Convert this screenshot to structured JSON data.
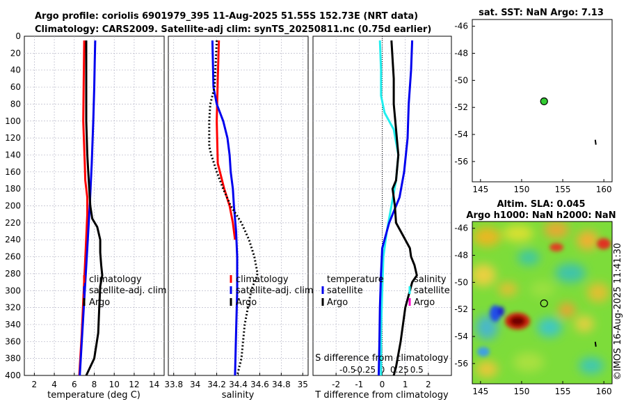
{
  "titles": {
    "line1": "Argo profile: coriolis 6901979_395 11-Aug-2025 51.55S 152.73E (NRT data)",
    "line2": "Climatology: CARS2009. Satellite-adj clim: synTS_20250811.nc (0.75d earlier)"
  },
  "credit": "©IMOS 16-Aug-2025 11:41:30",
  "colors": {
    "climatology": "#ff0000",
    "satellite": "#0000ee",
    "argo": "#000000",
    "t_satellite": "#22eeee",
    "s_argo_diff": "#ff00cc",
    "grid": "#b8b8c8",
    "sla_marker": "#000000",
    "sst_marker": "#33cc33"
  },
  "chart_data": [
    {
      "id": "temperature",
      "type": "line",
      "xlabel": "temperature (deg C)",
      "xlim": [
        1,
        15
      ],
      "xticks": [
        "2",
        "4",
        "6",
        "8",
        "10",
        "12",
        "14"
      ],
      "ylim": [
        0,
        400
      ],
      "yticks": [
        "0",
        "20",
        "40",
        "60",
        "80",
        "100",
        "120",
        "140",
        "160",
        "180",
        "200",
        "220",
        "240",
        "260",
        "280",
        "300",
        "320",
        "340",
        "360",
        "380",
        "400"
      ],
      "legend": {
        "climatology": "climatology",
        "satellite": "satellite-adj. clim",
        "argo": "Argo"
      },
      "series": [
        {
          "name": "climatology",
          "color_key": "climatology",
          "dash": false,
          "depth": [
            5,
            50,
            100,
            150,
            170,
            190,
            210,
            250,
            300,
            350,
            400
          ],
          "values": [
            7.0,
            6.95,
            6.9,
            7.05,
            7.1,
            7.3,
            7.3,
            7.15,
            6.95,
            6.75,
            6.5
          ]
        },
        {
          "name": "satellite-adj. clim",
          "color_key": "satellite",
          "dash": false,
          "depth": [
            5,
            30,
            60,
            100,
            150,
            200,
            250,
            300,
            350,
            400
          ],
          "values": [
            8.1,
            8.05,
            8.0,
            7.9,
            7.75,
            7.55,
            7.3,
            7.05,
            6.8,
            6.55
          ]
        },
        {
          "name": "Argo",
          "color_key": "argo",
          "dash": false,
          "depth": [
            5,
            100,
            140,
            170,
            200,
            215,
            225,
            240,
            255,
            270,
            282,
            295,
            320,
            350,
            380,
            400
          ],
          "values": [
            7.2,
            7.2,
            7.3,
            7.45,
            7.6,
            7.8,
            8.3,
            8.6,
            8.6,
            8.7,
            8.8,
            8.6,
            8.5,
            8.4,
            8.0,
            7.2
          ]
        }
      ]
    },
    {
      "id": "salinity",
      "type": "line",
      "xlabel": "salinity",
      "xlim": [
        33.75,
        35.05
      ],
      "xticks": [
        "33.8",
        "34",
        "34.2",
        "34.4",
        "34.6",
        "34.8",
        "35"
      ],
      "ylim": [
        0,
        400
      ],
      "legend": {
        "climatology": "climatology",
        "satellite": "satellite-adj. clim",
        "argo": "Argo"
      },
      "series": [
        {
          "name": "climatology",
          "color_key": "climatology",
          "dash": false,
          "depth": [
            5,
            50,
            100,
            150,
            160,
            180,
            200,
            220,
            240
          ],
          "values": [
            34.22,
            34.21,
            34.2,
            34.21,
            34.23,
            34.27,
            34.32,
            34.35,
            34.37
          ]
        },
        {
          "name": "satellite-adj. clim",
          "color_key": "satellite",
          "dash": false,
          "depth": [
            5,
            60,
            80,
            100,
            120,
            140,
            160,
            180,
            200,
            230,
            260,
            300,
            350,
            400
          ],
          "values": [
            34.16,
            34.17,
            34.2,
            34.26,
            34.3,
            34.32,
            34.33,
            34.35,
            34.36,
            34.38,
            34.39,
            34.39,
            34.38,
            34.37
          ]
        },
        {
          "name": "Argo",
          "color_key": "argo",
          "dash": true,
          "depth": [
            5,
            60,
            80,
            100,
            130,
            140,
            160,
            180,
            200,
            220,
            240,
            260,
            280,
            300,
            340,
            380,
            400
          ],
          "values": [
            34.2,
            34.18,
            34.14,
            34.13,
            34.13,
            34.15,
            34.2,
            34.26,
            34.33,
            34.43,
            34.5,
            34.55,
            34.58,
            34.52,
            34.46,
            34.43,
            34.39
          ]
        }
      ]
    },
    {
      "id": "difference",
      "type": "line",
      "xlabel": "T difference from climatology",
      "xlim": [
        -3,
        3
      ],
      "xticks": [
        "-2",
        "-1",
        "0",
        "1",
        "2"
      ],
      "s_label": "S difference from climatology",
      "s_xticks": [
        "-0.5",
        "-0.25",
        "0",
        "0.25",
        "0.5"
      ],
      "s_xtick_vals": [
        -1.5,
        -0.75,
        0,
        0.75,
        1.5
      ],
      "ylim": [
        0,
        400
      ],
      "legend": {
        "temperature": "temperature",
        "t_satellite": "satellite",
        "t_argo": "Argo",
        "salinity": "salinity",
        "s_satellite": "satellite",
        "s_argo": "Argo"
      },
      "series": [
        {
          "name": "T satellite",
          "color_key": "t_satellite",
          "dash": false,
          "depth": [
            5,
            40,
            70,
            90,
            110,
            140,
            170,
            200,
            230,
            260,
            300,
            350,
            400
          ],
          "values": [
            -0.1,
            -0.05,
            -0.05,
            0.1,
            0.5,
            0.7,
            0.6,
            0.4,
            0.2,
            0.05,
            0.0,
            -0.05,
            -0.05
          ]
        },
        {
          "name": "S satellite",
          "color_key": "satellite",
          "dash": false,
          "depth": [
            5,
            40,
            80,
            120,
            160,
            190,
            220,
            250,
            280,
            320,
            360,
            400
          ],
          "values": [
            1.3,
            1.25,
            1.15,
            1.1,
            0.95,
            0.75,
            0.3,
            0.0,
            -0.05,
            -0.1,
            -0.12,
            -0.15
          ]
        },
        {
          "name": "Argo",
          "color_key": "argo",
          "dash": false,
          "depth": [
            5,
            50,
            80,
            110,
            140,
            170,
            180,
            200,
            220,
            235,
            250,
            260,
            270,
            282,
            290,
            300,
            320,
            360,
            390,
            400
          ],
          "values": [
            0.4,
            0.5,
            0.5,
            0.6,
            0.7,
            0.6,
            0.45,
            0.55,
            0.6,
            0.9,
            1.2,
            1.25,
            1.4,
            1.5,
            1.3,
            1.2,
            1.0,
            0.8,
            0.6,
            0.5
          ]
        }
      ]
    },
    {
      "id": "sst_map",
      "type": "scatter",
      "title": "sat. SST: NaN Argo: 7.13",
      "xlim": [
        144,
        161
      ],
      "ylim": [
        -57.5,
        -45.5
      ],
      "xticks": [
        "145",
        "150",
        "155",
        "160"
      ],
      "yticks": [
        "-46",
        "-48",
        "-50",
        "-52",
        "-54",
        "-56"
      ],
      "points": [
        {
          "lon": 152.73,
          "lat": -51.55,
          "label": "Argo profile"
        }
      ],
      "land": [
        {
          "lon": 158.95,
          "lat": -54.6
        }
      ]
    },
    {
      "id": "sla_map",
      "type": "heatmap",
      "title1": "Altim. SLA: 0.045",
      "title2": "Argo h1000: NaN h2000: NaN",
      "xlim": [
        144,
        161
      ],
      "ylim": [
        -57.5,
        -45.5
      ],
      "xticks": [
        "145",
        "150",
        "155",
        "160"
      ],
      "yticks": [
        "-46",
        "-48",
        "-50",
        "-52",
        "-54",
        "-56"
      ],
      "points": [
        {
          "lon": 152.73,
          "lat": -51.55,
          "label": "Argo profile"
        }
      ],
      "land": [
        {
          "lon": 158.95,
          "lat": -54.6
        }
      ]
    }
  ]
}
